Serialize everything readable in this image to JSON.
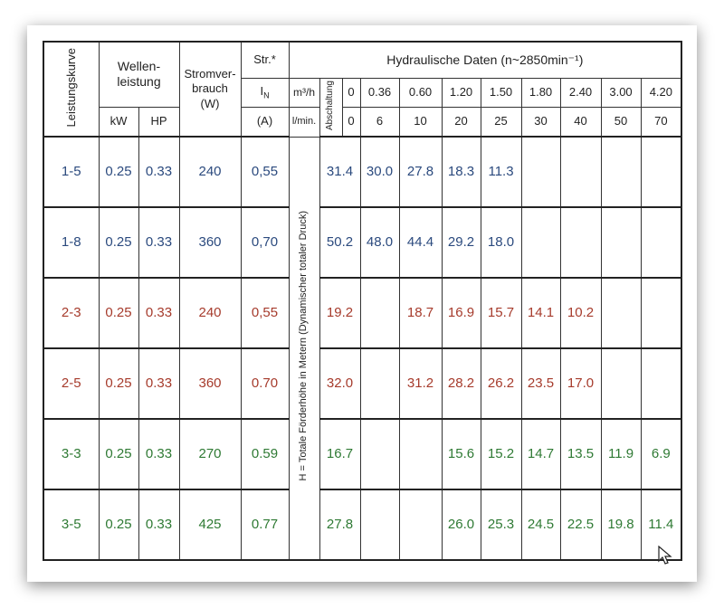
{
  "header": {
    "curve": "Leistungskurve",
    "shaft_power": "Wellen-\nleistung",
    "consumption": "Stromver-\nbrauch\n(W)",
    "current": "Str.*",
    "hydraulic": "Hydraulische Daten  (n~2850min⁻¹)",
    "current_symbol": "I",
    "current_subscript": "N",
    "flow_unit_m3h": "m³/h",
    "cutoff": "Abschaltung",
    "flow_m3h": [
      "0",
      "0.36",
      "0.60",
      "1.20",
      "1.50",
      "1.80",
      "2.40",
      "3.00",
      "4.20"
    ],
    "kw": "kW",
    "hp": "HP",
    "amp": "(A)",
    "flow_unit_lmin": "l/min.",
    "flow_lmin": [
      "0",
      "6",
      "10",
      "20",
      "25",
      "30",
      "40",
      "50",
      "70"
    ],
    "head_label": "H = Totale Förderhöhe in Metern (Dynamischer totaler Druck)"
  },
  "rows": [
    {
      "curve": "1-5",
      "kw": "0.25",
      "hp": "0.33",
      "watt": "240",
      "amp": "0,55",
      "color": "#2b4a7e",
      "heads": [
        "31.4",
        "30.0",
        "27.8",
        "18.3",
        "11.3",
        null,
        null,
        null,
        null
      ]
    },
    {
      "curve": "1-8",
      "kw": "0.25",
      "hp": "0.33",
      "watt": "360",
      "amp": "0,70",
      "color": "#2b4a7e",
      "heads": [
        "50.2",
        "48.0",
        "44.4",
        "29.2",
        "18.0",
        null,
        null,
        null,
        null
      ]
    },
    {
      "curve": "2-3",
      "kw": "0.25",
      "hp": "0.33",
      "watt": "240",
      "amp": "0,55",
      "color": "#a63b2c",
      "heads": [
        "19.2",
        null,
        "18.7",
        "16.9",
        "15.7",
        "14.1",
        "10.2",
        null,
        null
      ]
    },
    {
      "curve": "2-5",
      "kw": "0.25",
      "hp": "0.33",
      "watt": "360",
      "amp": "0.70",
      "color": "#a63b2c",
      "heads": [
        "32.0",
        null,
        "31.2",
        "28.2",
        "26.2",
        "23.5",
        "17.0",
        null,
        null
      ]
    },
    {
      "curve": "3-3",
      "kw": "0.25",
      "hp": "0.33",
      "watt": "270",
      "amp": "0.59",
      "color": "#2f7a34",
      "heads": [
        "16.7",
        null,
        null,
        "15.6",
        "15.2",
        "14.7",
        "13.5",
        "11.9",
        "6.9"
      ]
    },
    {
      "curve": "3-5",
      "kw": "0.25",
      "hp": "0.33",
      "watt": "425",
      "amp": "0.77",
      "color": "#2f7a34",
      "heads": [
        "27.8",
        null,
        null,
        "26.0",
        "25.3",
        "24.5",
        "22.5",
        "19.8",
        "11.4"
      ]
    }
  ]
}
